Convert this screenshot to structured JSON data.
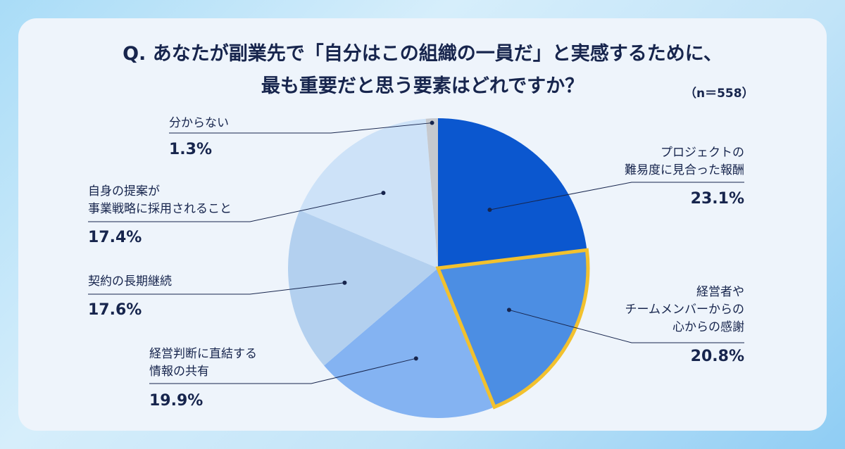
{
  "title": {
    "line1": "Q. あなたが副業先で「自分はこの組織の一員だ」と実感するために、",
    "line2": "最も重要だと思う要素はどれですか？"
  },
  "sample_size": "（n＝558）",
  "chart_data": {
    "type": "pie",
    "title": "Q. あなたが副業先で「自分はこの組織の一員だ」と実感するために、最も重要だと思う要素はどれですか？",
    "slices": [
      {
        "label": "プロジェクトの\n難易度に見合った報酬",
        "value": 23.1,
        "value_label": "23.1%",
        "color": "#0b57cf",
        "highlight": false
      },
      {
        "label": "経営者や\nチームメンバーからの\n心からの感謝",
        "value": 20.8,
        "value_label": "20.8%",
        "color": "#4c8ee3",
        "highlight": true
      },
      {
        "label": "経営判断に直結する\n情報の共有",
        "value": 19.9,
        "value_label": "19.9%",
        "color": "#84b3f2",
        "highlight": false
      },
      {
        "label": "契約の長期継続",
        "value": 17.6,
        "value_label": "17.6%",
        "color": "#b3d0ef",
        "highlight": false
      },
      {
        "label": "自身の提案が\n事業戦略に採用されること",
        "value": 17.4,
        "value_label": "17.4%",
        "color": "#cde2f8",
        "highlight": false
      },
      {
        "label": "分からない",
        "value": 1.3,
        "value_label": "1.3%",
        "color": "#c6c9ce",
        "highlight": false
      }
    ],
    "highlight_color": "#f2c12e",
    "legend": "none"
  }
}
